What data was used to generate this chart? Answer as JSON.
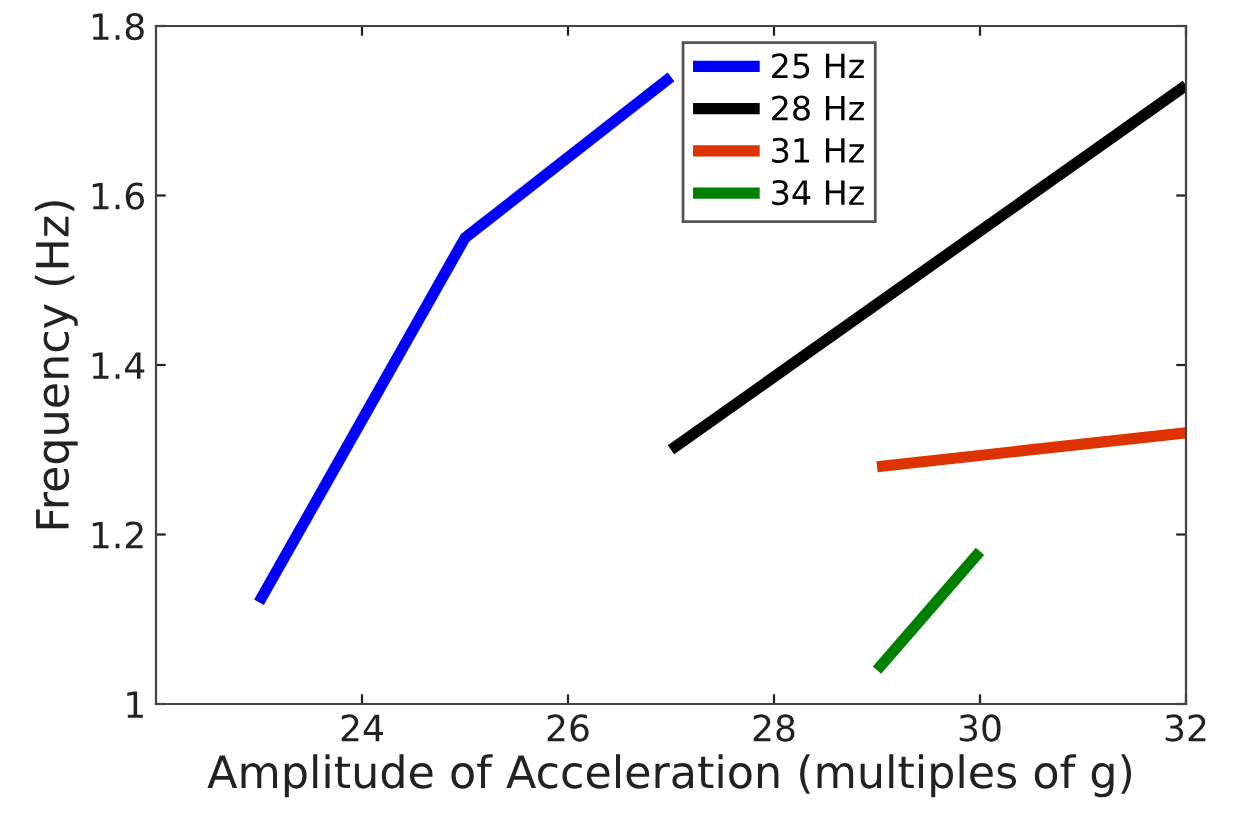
{
  "chart_data": {
    "type": "line",
    "xlabel": "Amplitude of Acceleration (multiples of g)",
    "ylabel": "Frequency (Hz)",
    "xlim": [
      22,
      32
    ],
    "xticks": [
      24,
      26,
      28,
      30,
      32
    ],
    "ylim": [
      1,
      1.8
    ],
    "yticks": [
      1,
      1.2,
      1.4,
      1.6,
      1.8
    ],
    "grid": false,
    "legend": "top",
    "line_style": "solid",
    "marker": "none",
    "series": [
      {
        "name": "25 Hz",
        "color": "#0000ff",
        "x": [
          23,
          25,
          27
        ],
        "values": [
          1.12,
          1.55,
          1.74
        ]
      },
      {
        "name": "28 Hz",
        "color": "#000000",
        "x": [
          27,
          32
        ],
        "values": [
          1.3,
          1.73
        ]
      },
      {
        "name": "31 Hz",
        "color": "#dd3300",
        "x": [
          29,
          32
        ],
        "values": [
          1.28,
          1.32
        ]
      },
      {
        "name": "34 Hz",
        "color": "#008000",
        "x": [
          29,
          30
        ],
        "values": [
          1.04,
          1.18
        ]
      }
    ]
  }
}
